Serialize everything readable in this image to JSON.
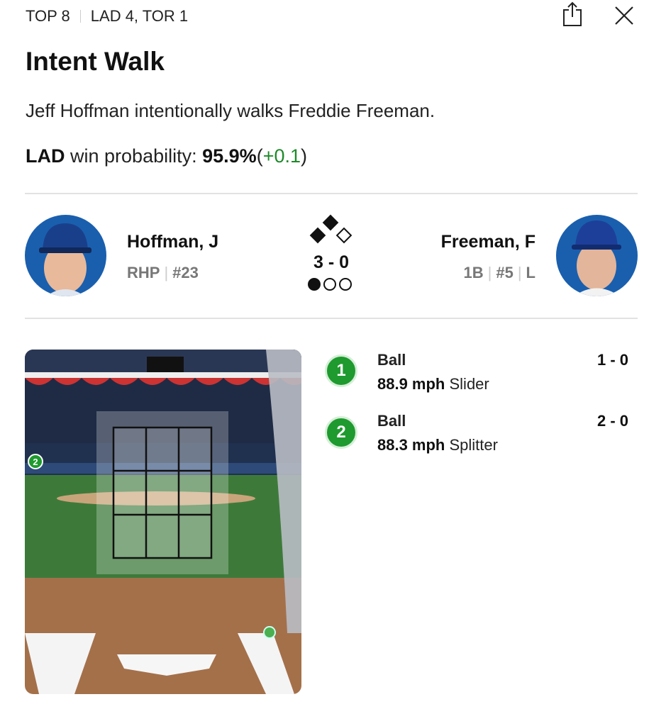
{
  "header": {
    "inning": "TOP 8",
    "score": "LAD 4, TOR 1",
    "share_icon": "share-icon",
    "close_icon": "close-icon"
  },
  "play": {
    "title": "Intent Walk",
    "description": "Jeff Hoffman intentionally walks Freddie Freeman.",
    "win_prob": {
      "team": "LAD",
      "label": "win probability:",
      "value": "95.9%",
      "change": "+0.1",
      "open": "(",
      "close": ")"
    }
  },
  "pitcher": {
    "name": "Hoffman, J",
    "position": "RHP",
    "number": "#23"
  },
  "batter": {
    "name": "Freeman, F",
    "position": "1B",
    "number": "#5",
    "bats": "L"
  },
  "situation": {
    "count": "3 - 0",
    "bases": {
      "first": false,
      "second": true,
      "third": true
    },
    "outs": 1
  },
  "pitches": [
    {
      "num": "1",
      "result": "Ball",
      "speed": "88.9 mph",
      "type": "Slider",
      "count": "1 - 0"
    },
    {
      "num": "2",
      "result": "Ball",
      "speed": "88.3 mph",
      "type": "Splitter",
      "count": "2 - 0"
    }
  ],
  "colors": {
    "accent_green": "#1e9a2a",
    "pitcher_bg": "#1a5fae",
    "batter_bg": "#1a5fae"
  }
}
